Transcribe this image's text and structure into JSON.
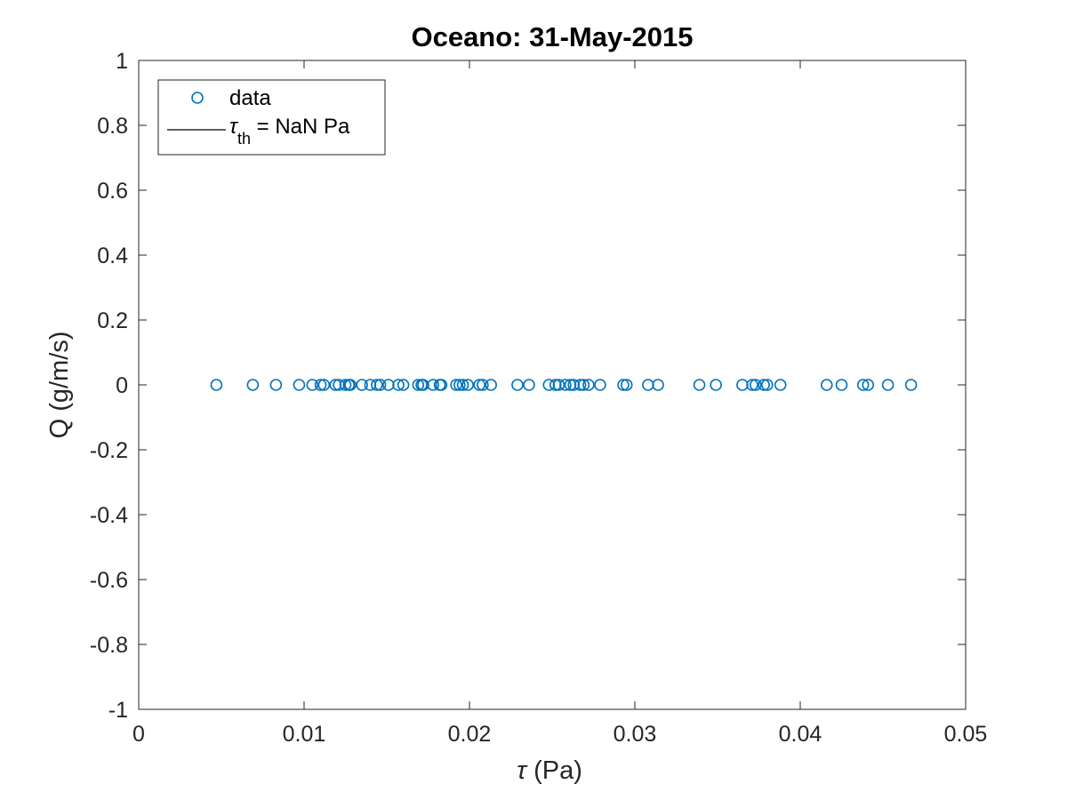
{
  "chart_data": {
    "type": "scatter",
    "title": "Oceano: 31-May-2015",
    "xlabel_symbol": "τ",
    "xlabel_unit": "(Pa)",
    "ylabel": "Q (g/m/s)",
    "xlim": [
      0,
      0.05
    ],
    "ylim": [
      -1,
      1
    ],
    "xticks": [
      0,
      0.01,
      0.02,
      0.03,
      0.04,
      0.05
    ],
    "xtick_labels": [
      "0",
      "0.01",
      "0.02",
      "0.03",
      "0.04",
      "0.05"
    ],
    "yticks": [
      1,
      0.8,
      0.6,
      0.4,
      0.2,
      0,
      -0.2,
      -0.4,
      -0.6,
      -0.8,
      -1
    ],
    "ytick_labels": [
      "1",
      "0.8",
      "0.6",
      "0.4",
      "0.2",
      "0",
      "-0.2",
      "-0.4",
      "-0.6",
      "-0.8",
      "-1"
    ],
    "grid": false,
    "legend_position": "top-left",
    "series": [
      {
        "name": "data",
        "marker": "circle",
        "color": "#0072BD",
        "x": [
          0.0047,
          0.0069,
          0.0083,
          0.0097,
          0.0105,
          0.011,
          0.0112,
          0.0119,
          0.0121,
          0.0125,
          0.0127,
          0.0128,
          0.0135,
          0.014,
          0.0144,
          0.0146,
          0.0151,
          0.0157,
          0.016,
          0.0169,
          0.0171,
          0.0172,
          0.0178,
          0.0182,
          0.0183,
          0.0192,
          0.0194,
          0.0196,
          0.0199,
          0.0206,
          0.0208,
          0.0213,
          0.0229,
          0.0236,
          0.0248,
          0.0252,
          0.0254,
          0.0258,
          0.0261,
          0.0263,
          0.0267,
          0.0269,
          0.0272,
          0.0279,
          0.0293,
          0.0295,
          0.0308,
          0.0314,
          0.0339,
          0.0349,
          0.0365,
          0.0371,
          0.0373,
          0.0378,
          0.038,
          0.0388,
          0.0416,
          0.0425,
          0.0438,
          0.0441,
          0.0453,
          0.0467
        ],
        "y": [
          0,
          0,
          0,
          0,
          0,
          0,
          0,
          0,
          0,
          0,
          0,
          0,
          0,
          0,
          0,
          0,
          0,
          0,
          0,
          0,
          0,
          0,
          0,
          0,
          0,
          0,
          0,
          0,
          0,
          0,
          0,
          0,
          0,
          0,
          0,
          0,
          0,
          0,
          0,
          0,
          0,
          0,
          0,
          0,
          0,
          0,
          0,
          0,
          0,
          0,
          0,
          0,
          0,
          0,
          0,
          0,
          0,
          0,
          0,
          0,
          0,
          0
        ]
      },
      {
        "name_symbol": "τ",
        "name_subscript": "th",
        "name_suffix": " = NaN Pa",
        "marker": "line",
        "color": "#000000"
      }
    ]
  }
}
